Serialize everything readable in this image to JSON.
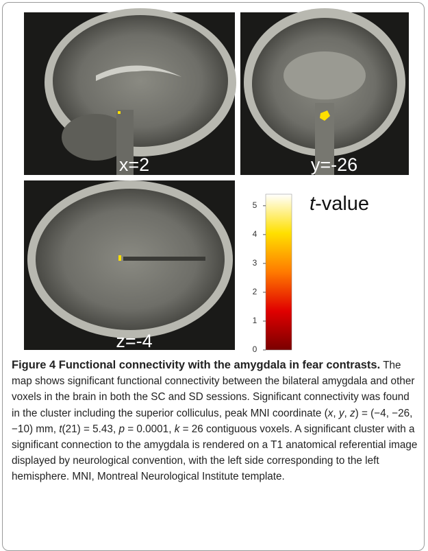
{
  "figure": {
    "panels": [
      {
        "label": "x=2"
      },
      {
        "label": "y=-26"
      },
      {
        "label": "z=-4"
      }
    ],
    "colorbar": {
      "title": [
        {
          "text": "t",
          "italic": true
        },
        {
          "text": "-value",
          "italic": false
        }
      ],
      "ticks": [
        0,
        1,
        2,
        3,
        4,
        5
      ],
      "lim": [
        0,
        5.4
      ],
      "colors": [
        "#7a0000",
        "#e00000",
        "#ff7a00",
        "#ffe000",
        "#ffffff"
      ]
    },
    "caption": {
      "title": "Figure 4 Functional connectivity with the amygdala in fear contrasts.",
      "body": [
        {
          "text": "The map shows significant functional connectivity between the bilateral amygdala and other voxels in the brain in both the SC and SD sessions. Significant connectivity was found in the cluster including the superior colliculus, peak MNI coordinate (",
          "italic": false
        },
        {
          "text": "x",
          "italic": true
        },
        {
          "text": ", ",
          "italic": false
        },
        {
          "text": "y",
          "italic": true
        },
        {
          "text": ", ",
          "italic": false
        },
        {
          "text": "z",
          "italic": true
        },
        {
          "text": ") = (−4, −26, −10) mm, ",
          "italic": false
        },
        {
          "text": "t",
          "italic": true
        },
        {
          "text": "(21) = 5.43, ",
          "italic": false
        },
        {
          "text": "p",
          "italic": true
        },
        {
          "text": " = 0.0001, ",
          "italic": false
        },
        {
          "text": "k",
          "italic": true
        },
        {
          "text": " = 26 contiguous voxels. A significant cluster with a significant connection to the amygdala is rendered on a T1 anatomical referential image displayed by neurological convention, with the left side corresponding to the left hemisphere. MNI, Montreal Neurological Institute template.",
          "italic": false
        }
      ]
    }
  }
}
